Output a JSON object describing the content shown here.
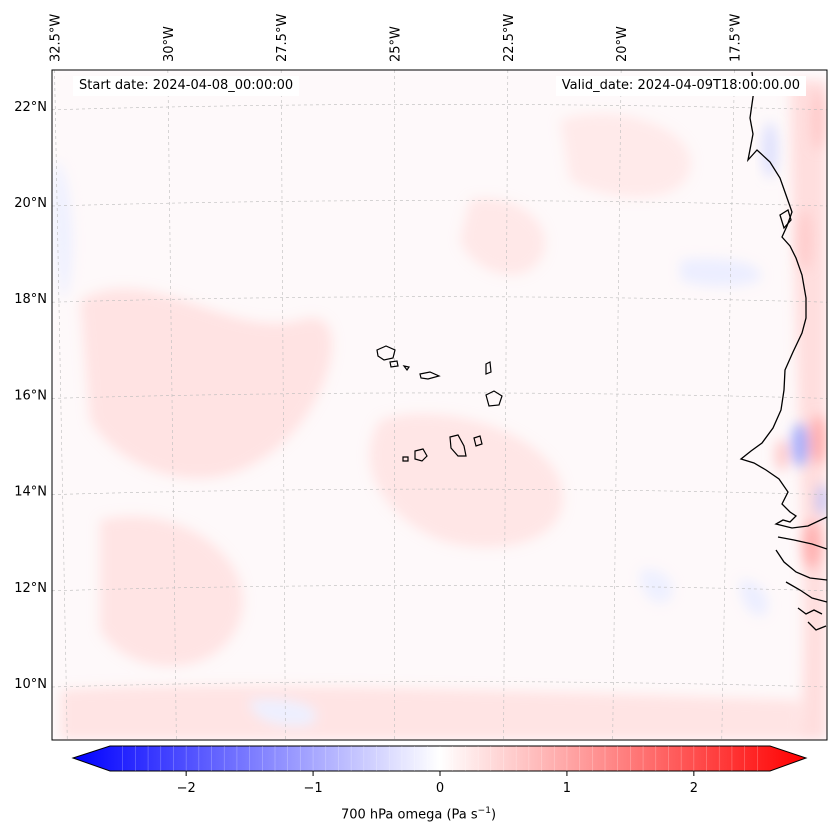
{
  "map": {
    "start_date": "Start date: 2024-04-08_00:00:00",
    "valid_date": "Valid_date: 2024-04-09T18:00:00.00",
    "lon_ticks": [
      {
        "lon": -32.5,
        "label": "32.5°W"
      },
      {
        "lon": -30.0,
        "label": "30°W"
      },
      {
        "lon": -27.5,
        "label": "27.5°W"
      },
      {
        "lon": -25.0,
        "label": "25°W"
      },
      {
        "lon": -22.5,
        "label": "22.5°W"
      },
      {
        "lon": -20.0,
        "label": "20°W"
      },
      {
        "lon": -17.5,
        "label": "17.5°W"
      }
    ],
    "lat_ticks": [
      {
        "lat": 22,
        "label": "22°N"
      },
      {
        "lat": 20,
        "label": "20°N"
      },
      {
        "lat": 18,
        "label": "18°N"
      },
      {
        "lat": 16,
        "label": "16°N"
      },
      {
        "lat": 14,
        "label": "14°N"
      },
      {
        "lat": 12,
        "label": "12°N"
      },
      {
        "lat": 10,
        "label": "10°N"
      }
    ],
    "features": [
      "west-african-coastline",
      "cape-verde-islands",
      "lat-lon-gridlines",
      "700-hpa-omega-field"
    ],
    "colors": {
      "negative": "#0000ff",
      "zero": "#ffffff",
      "positive": "#ff0000",
      "coastline": "#000000"
    }
  },
  "colorbar": {
    "label_main": "700 hPa omega (Pa s",
    "label_exp": "−1",
    "label_end": ")",
    "min": -2.6,
    "max": 2.6,
    "colormap": "bwr",
    "extend": "both",
    "ticks": [
      {
        "value": -2,
        "label": "−2"
      },
      {
        "value": -1,
        "label": "−1"
      },
      {
        "value": 0,
        "label": "0"
      },
      {
        "value": 1,
        "label": "1"
      },
      {
        "value": 2,
        "label": "2"
      }
    ]
  }
}
